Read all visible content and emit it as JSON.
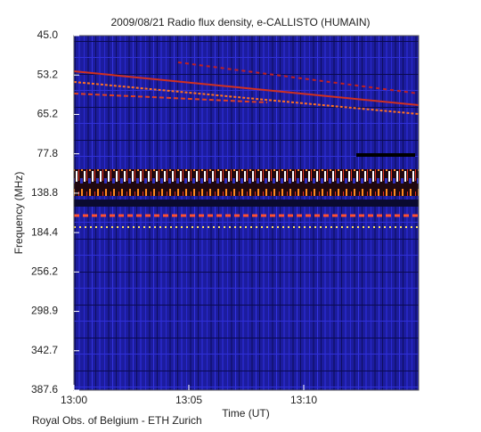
{
  "chart_data": {
    "type": "spectrogram",
    "title": "2009/08/21  Radio flux density, e-CALLISTO (HUMAIN)",
    "x_label": "Time (UT)",
    "y_label": "Frequency (MHz)",
    "credit": "Royal Obs. of Belgium - ETH Zurich",
    "xlim": [
      "13:00",
      "13:15"
    ],
    "xticks": [
      "13:00",
      "13:05",
      "13:10"
    ],
    "ylim": [
      {
        "value": 45,
        "label": "45.0"
      },
      387.6
    ],
    "yticks": [
      {
        "value": 45,
        "label": "45.0"
      },
      53.2,
      65.2,
      77.8,
      138.8,
      184.4,
      256.2,
      298.9,
      342.7,
      387.6
    ],
    "y_inverted": true
  }
}
